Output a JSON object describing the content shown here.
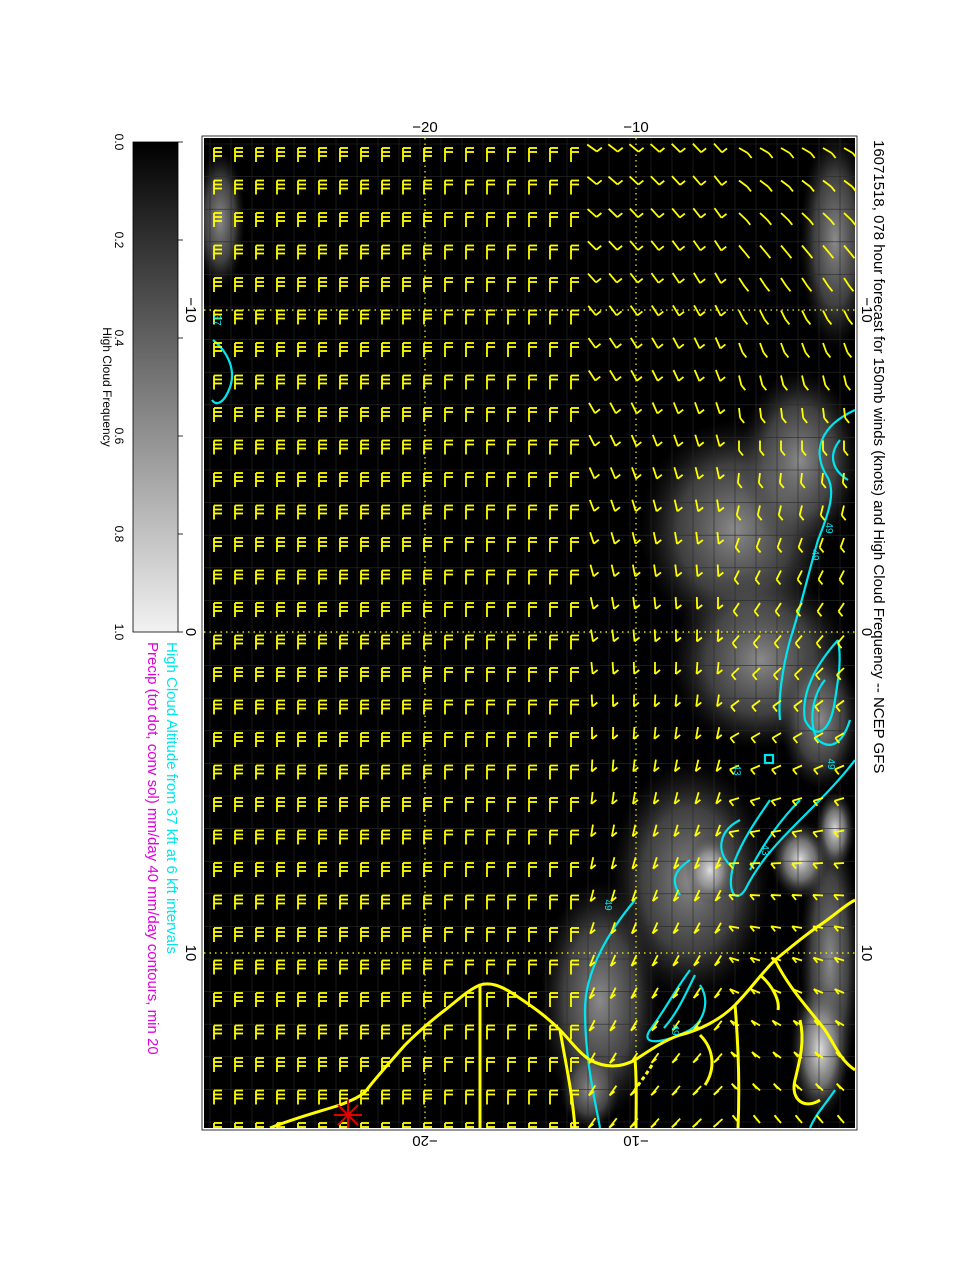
{
  "title": "16071518, 078 hour forecast for 150mb winds (knots) and High Cloud Frequency -- NCEP GFS",
  "subtitle_cyan": "High Cloud Altitude from 37 kft at 6 kft intervals",
  "subtitle_magenta": "Precip (tot dot, conv sol) mm/day 40 mm/day contours, min 20",
  "colorbar": {
    "label": "High Cloud Frequency",
    "ticks": [
      "0.0",
      "0.2",
      "0.4",
      "0.6",
      "0.8",
      "1.0"
    ]
  },
  "axes": {
    "top_ticks": [
      "−20",
      "−10"
    ],
    "bottom_ticks": [
      "−20",
      "−10"
    ],
    "left_ticks": [
      "−10",
      "0",
      "10"
    ],
    "right_ticks": [
      "−10",
      "0",
      "10"
    ]
  },
  "contour_labels": [
    "37",
    "49",
    "43",
    "49",
    "43",
    "49",
    "49",
    "49"
  ],
  "colors": {
    "background": "#000000",
    "barbs": "#ffff00",
    "contours": "#00e5ee",
    "coast": "#ffff00",
    "marker": "#e00000",
    "title": "#000000",
    "subtitle_cyan": "#00e5ee",
    "subtitle_magenta": "#e000e0"
  }
}
